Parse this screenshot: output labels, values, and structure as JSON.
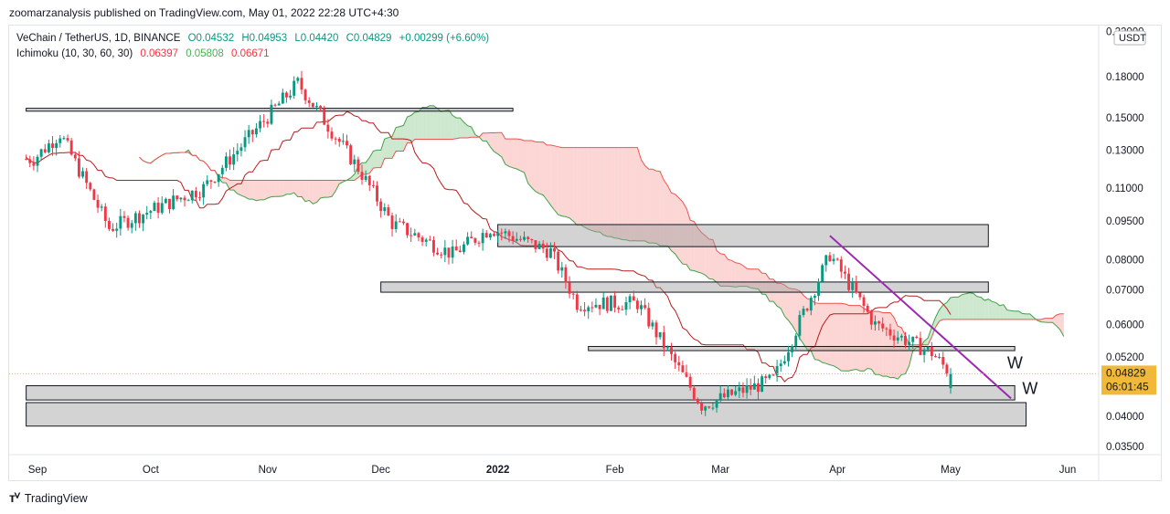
{
  "publisher_line": "zoomarzanalysis published on TradingView.com, May 01, 2022 22:28 UTC+4:30",
  "legend": {
    "symbol": "VeChain / TetherUS, 1D, BINANCE",
    "open": "O0.04532",
    "high": "H0.04953",
    "low": "L0.04420",
    "close": "C0.04829",
    "change": "+0.00299 (+6.60%)",
    "indicator_name": "Ichimoku (10, 30, 60, 30)",
    "ind_values": [
      "0.06397",
      "0.05808",
      "0.06671"
    ]
  },
  "currency_label": "USDT",
  "price_label": "0.04829",
  "countdown_label": "06:01:45",
  "footer_brand": "TradingView",
  "annotations": [
    "W",
    "W"
  ],
  "colors": {
    "up": "#089981",
    "down": "#f23645",
    "cloud_bear": "#f7b5b0",
    "cloud_bull": "#a5d6a7",
    "trendline": "#9c27b0",
    "price_tag": "#f0b93a"
  },
  "chart_data": {
    "type": "candlestick",
    "symbol": "VETUSDT",
    "interval": "1D",
    "y_scale": "log",
    "ylim": [
      0.033,
      0.24
    ],
    "y_ticks": [
      "0.22000",
      "0.18000",
      "0.15000",
      "0.13000",
      "0.11000",
      "0.09500",
      "0.08000",
      "0.07000",
      "0.06000",
      "0.05200",
      "0.04000",
      "0.03500"
    ],
    "x_ticks": [
      "Sep",
      "Oct",
      "Nov",
      "Dec",
      "2022",
      "Feb",
      "Mar",
      "Apr",
      "May",
      "Jun"
    ],
    "key_closes": [
      {
        "date": "2021-08-31",
        "price": 0.125
      },
      {
        "date": "2021-09-07",
        "price": 0.14
      },
      {
        "date": "2021-09-20",
        "price": 0.092
      },
      {
        "date": "2021-10-15",
        "price": 0.11
      },
      {
        "date": "2021-11-09",
        "price": 0.175
      },
      {
        "date": "2021-11-25",
        "price": 0.12
      },
      {
        "date": "2021-12-04",
        "price": 0.094
      },
      {
        "date": "2021-12-20",
        "price": 0.082
      },
      {
        "date": "2021-12-30",
        "price": 0.092
      },
      {
        "date": "2022-01-15",
        "price": 0.083
      },
      {
        "date": "2022-01-22",
        "price": 0.066
      },
      {
        "date": "2022-02-07",
        "price": 0.066
      },
      {
        "date": "2022-02-24",
        "price": 0.042
      },
      {
        "date": "2022-03-15",
        "price": 0.047
      },
      {
        "date": "2022-03-30",
        "price": 0.082
      },
      {
        "date": "2022-04-11",
        "price": 0.06
      },
      {
        "date": "2022-04-26",
        "price": 0.053
      },
      {
        "date": "2022-05-01",
        "price": 0.04829
      }
    ],
    "zones": [
      {
        "name": "zone-1",
        "from": "2021-08-29",
        "to": "2022-01-05",
        "low": 0.1545,
        "high": 0.1565
      },
      {
        "name": "zone-2",
        "from": "2022-01-01",
        "to": "2022-05-11",
        "low": 0.0848,
        "high": 0.0935
      },
      {
        "name": "zone-3",
        "from": "2021-12-01",
        "to": "2022-05-11",
        "low": 0.0693,
        "high": 0.0725
      },
      {
        "name": "zone-4",
        "from": "2022-01-25",
        "to": "2022-05-18",
        "low": 0.0535,
        "high": 0.0545
      },
      {
        "name": "zone-5",
        "from": "2021-08-29",
        "to": "2022-05-18",
        "low": 0.043,
        "high": 0.0458
      },
      {
        "name": "zone-6",
        "from": "2021-08-29",
        "to": "2022-05-21",
        "low": 0.0383,
        "high": 0.0425
      }
    ],
    "trendline": [
      {
        "date": "2022-03-30",
        "price": 0.089
      },
      {
        "date": "2022-05-17",
        "price": 0.0433
      }
    ]
  }
}
